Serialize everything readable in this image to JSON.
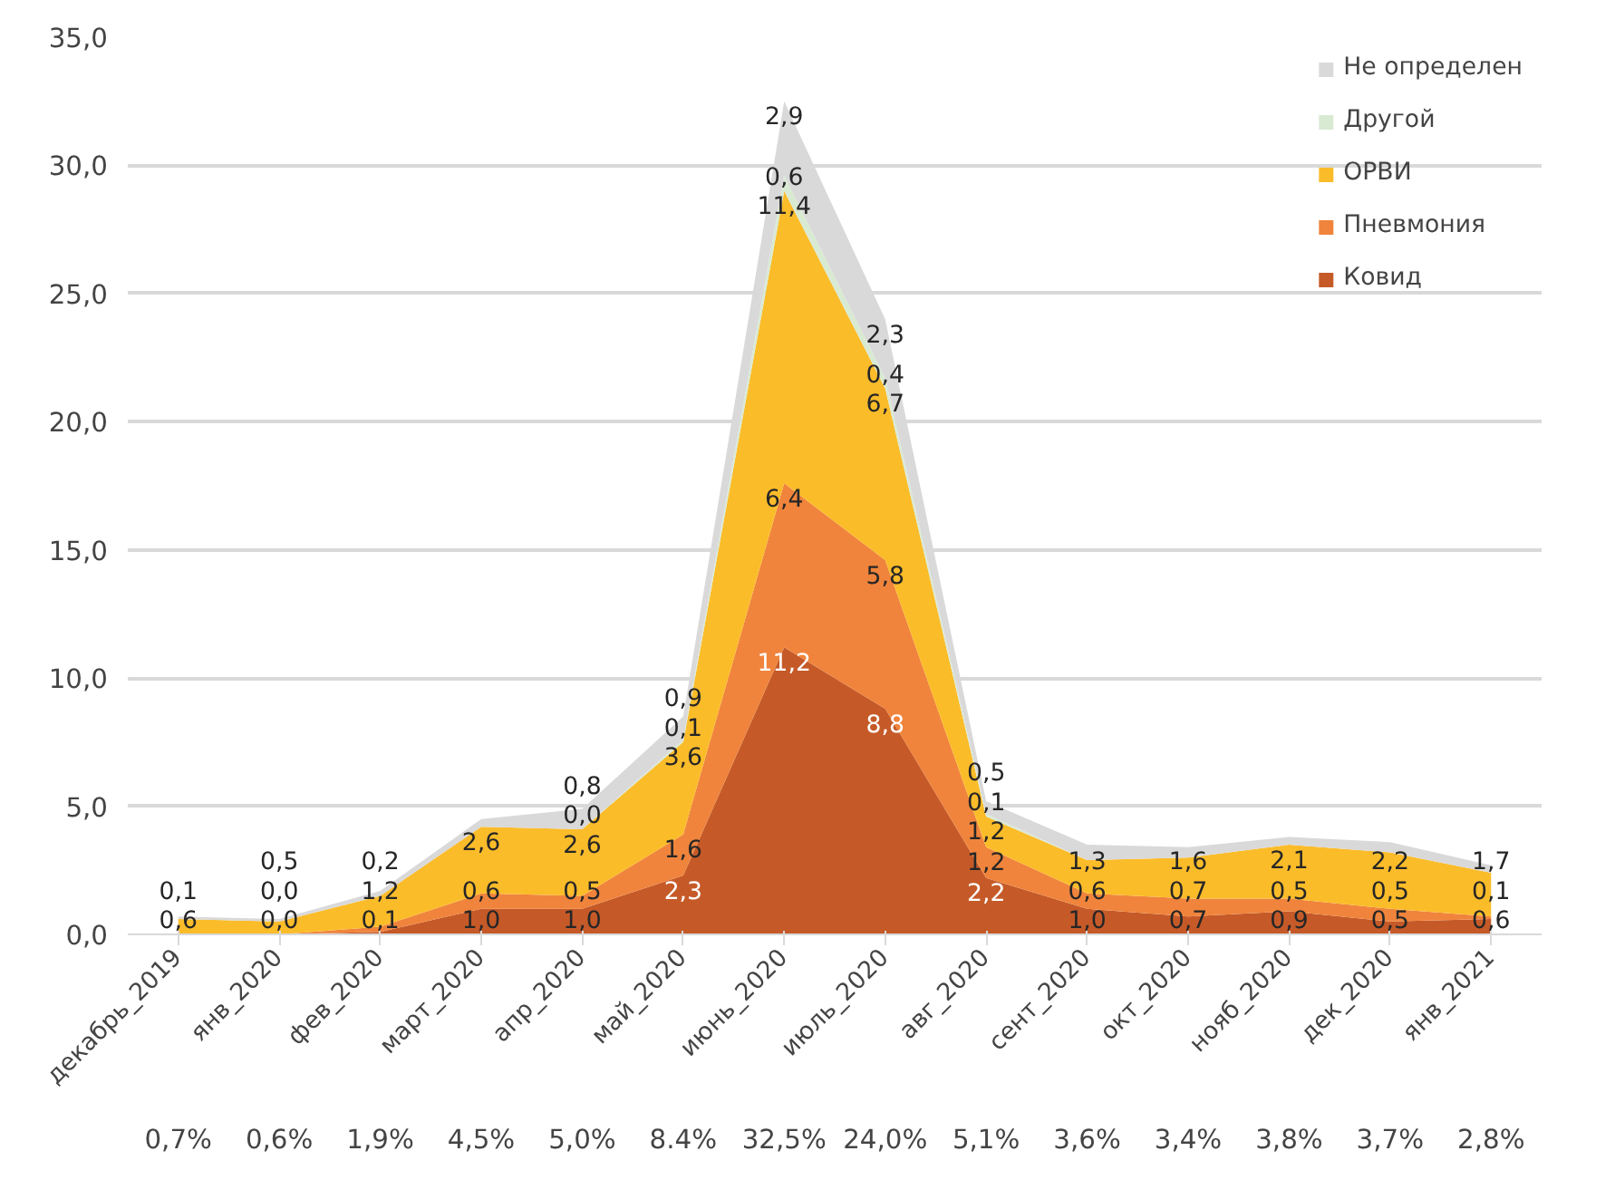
{
  "chart_data": {
    "type": "area",
    "stacked": true,
    "categories": [
      "декабрь_2019",
      "янв_2020",
      "фев_2020",
      "март_2020",
      "апр_2020",
      "май_2020",
      "июнь_2020",
      "июль_2020",
      "авг_2020",
      "сент_2020",
      "окт_2020",
      "нояб_2020",
      "дек_2020",
      "янв_2021"
    ],
    "ylim": [
      0,
      35
    ],
    "yticks": [
      {
        "value": 0,
        "label": "0,0"
      },
      {
        "value": 5,
        "label": "5,0"
      },
      {
        "value": 10,
        "label": "10,0"
      },
      {
        "value": 15,
        "label": "15,0"
      },
      {
        "value": 20,
        "label": "20,0"
      },
      {
        "value": 25,
        "label": "25,0"
      },
      {
        "value": 30,
        "label": "30,0"
      },
      {
        "value": 35,
        "label": "35,0"
      }
    ],
    "grid": "y",
    "legend": "top right",
    "series": [
      {
        "name": "Ковид",
        "color": "#c55a28",
        "values": [
          0.0,
          0.0,
          0.1,
          1.0,
          1.0,
          2.3,
          11.2,
          8.8,
          2.2,
          1.0,
          0.7,
          0.9,
          0.5,
          0.6
        ],
        "value_labels": [
          null,
          "0,0",
          "0,1",
          "1,0",
          "1,0",
          "2,3",
          "11,2",
          "8,8",
          "2,2",
          "1,0",
          "0,7",
          "0,9",
          "0,5",
          "0,6"
        ]
      },
      {
        "name": "Пневмония",
        "color": "#f0843c",
        "values": [
          0.0,
          0.0,
          0.2,
          0.6,
          0.5,
          1.6,
          6.4,
          5.8,
          1.2,
          0.6,
          0.7,
          0.5,
          0.5,
          0.1
        ],
        "value_labels": [
          null,
          "0,0",
          null,
          "0,6",
          "0,5",
          "1,6",
          "6,4",
          "5,8",
          "1,2",
          "0,6",
          "0,7",
          "0,5",
          "0,5",
          "0,1"
        ]
      },
      {
        "name": "ОРВИ",
        "color": "#fbbc2a",
        "values": [
          0.6,
          0.5,
          1.2,
          2.6,
          2.6,
          3.6,
          11.4,
          6.7,
          1.2,
          1.3,
          1.6,
          2.1,
          2.2,
          1.7
        ],
        "value_labels": [
          "0,6",
          "0,5",
          "1,2",
          "2,6",
          "2,6",
          "3,6",
          "11,4",
          "6,7",
          "1,2",
          "1,3",
          "1,6",
          "2,1",
          "2,2",
          "1,7"
        ]
      },
      {
        "name": "Другой",
        "color": "#d9ead3",
        "values": [
          0.0,
          0.0,
          0.0,
          0.0,
          0.0,
          0.1,
          0.6,
          0.4,
          0.1,
          0.0,
          0.0,
          0.0,
          0.0,
          0.0
        ],
        "value_labels": [
          null,
          null,
          null,
          null,
          "0,0",
          "0,1",
          "0,6",
          "0,4",
          "0,1",
          null,
          null,
          null,
          null,
          null
        ]
      },
      {
        "name": "Не определен",
        "color": "#d9d9d9",
        "values": [
          0.1,
          0.1,
          0.2,
          0.3,
          0.8,
          0.9,
          2.9,
          2.3,
          0.5,
          0.6,
          0.4,
          0.3,
          0.4,
          0.3
        ],
        "value_labels": [
          "0,1",
          null,
          "0,2",
          null,
          "0,8",
          "0,9",
          "2,9",
          "2,3",
          "0,5",
          null,
          null,
          null,
          null,
          null
        ]
      }
    ],
    "annotations": [
      "0,7%",
      "0,6%",
      "1,9%",
      "4,5%",
      "5,0%",
      "8.4%",
      "32,5%",
      "24,0%",
      "5,1%",
      "3,6%",
      "3,4%",
      "3,8%",
      "3,7%",
      "2,8%"
    ]
  }
}
